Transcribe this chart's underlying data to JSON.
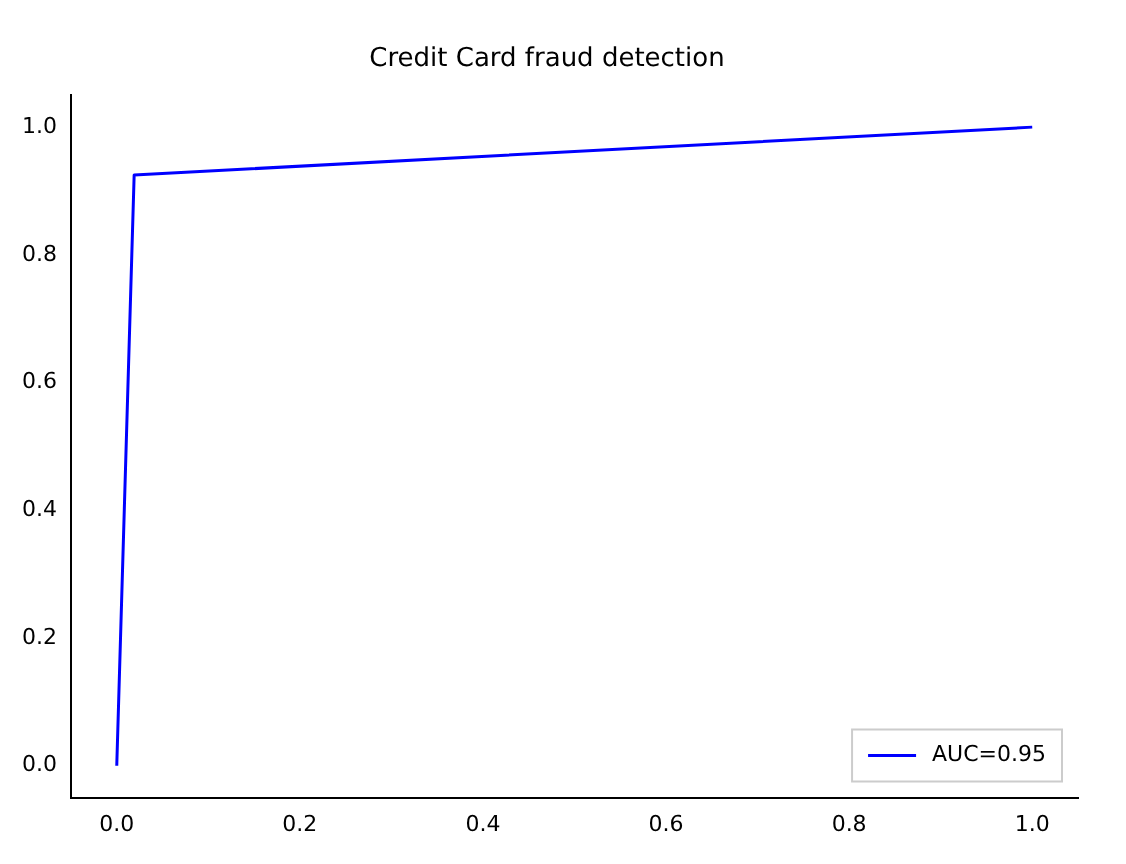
{
  "chart_data": {
    "type": "line",
    "title": "Credit Card fraud detection",
    "xlim": [
      -0.05,
      1.05
    ],
    "ylim": [
      -0.05,
      1.05
    ],
    "xticks": [
      {
        "value": 0,
        "label": "0.0"
      },
      {
        "value": 0.2,
        "label": "0.2"
      },
      {
        "value": 0.4,
        "label": "0.4"
      },
      {
        "value": 0.6,
        "label": "0.6"
      },
      {
        "value": 0.8,
        "label": "0.8"
      },
      {
        "value": 1,
        "label": "1.0"
      }
    ],
    "yticks": [
      {
        "value": 0,
        "label": "0.0"
      },
      {
        "value": 0.2,
        "label": "0.2"
      },
      {
        "value": 0.4,
        "label": "0.4"
      },
      {
        "value": 0.6,
        "label": "0.6"
      },
      {
        "value": 0.8,
        "label": "0.8"
      },
      {
        "value": 1,
        "label": "1.0"
      }
    ],
    "series": [
      {
        "name": "AUC=0.95",
        "color": "#0000ff",
        "x": [
          0,
          0.019,
          1
        ],
        "values": [
          0,
          0.925,
          1
        ]
      }
    ],
    "legend": "bottom right",
    "grid": false,
    "marker": "none",
    "line_style": "solid"
  }
}
